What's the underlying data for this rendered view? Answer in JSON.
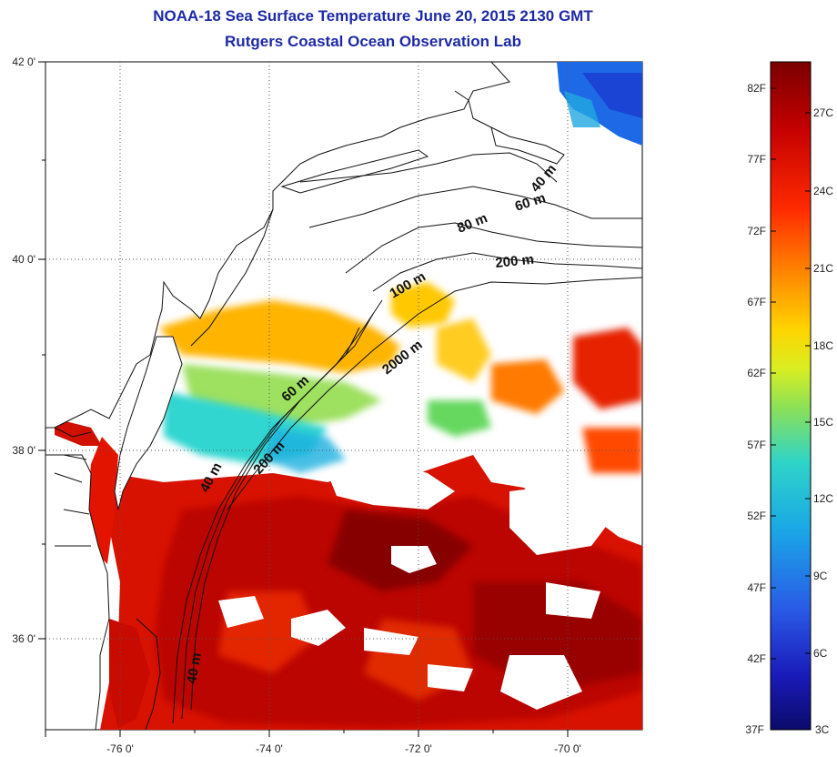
{
  "title": {
    "line1": "NOAA-18 Sea Surface Temperature June 20, 2015 2130 GMT",
    "line2": "Rutgers Coastal Ocean Observation Lab"
  },
  "map": {
    "lat_labels": [
      "42 0'",
      "40 0'",
      "38 0'",
      "36 0'"
    ],
    "lon_labels": [
      "-76 0'",
      "-74 0'",
      "-72 0'",
      "-70 0'"
    ],
    "contour_labels": [
      "40 m",
      "60 m",
      "80 m",
      "200 m",
      "100 m",
      "2000 m",
      "60 m",
      "200 m",
      "40 m",
      "40 m"
    ],
    "colors": {
      "land": "#ffffff",
      "cloud": "#ffffff",
      "coastline": "#111111",
      "grid": "#555555"
    }
  },
  "colorbar": {
    "fahrenheit_labels": [
      "82F",
      "77F",
      "72F",
      "67F",
      "62F",
      "57F",
      "52F",
      "47F",
      "42F",
      "37F"
    ],
    "celsius_labels": [
      "27C",
      "24C",
      "21C",
      "18C",
      "15C",
      "12C",
      "9C",
      "6C",
      "3C"
    ],
    "colors": [
      "#800000",
      "#c80000",
      "#ff2a00",
      "#ff7a00",
      "#ffcc00",
      "#ccee22",
      "#66dd66",
      "#22ccdd",
      "#1a9ae6",
      "#2a50e6",
      "#1a1ab0",
      "#0a0a7a"
    ]
  }
}
